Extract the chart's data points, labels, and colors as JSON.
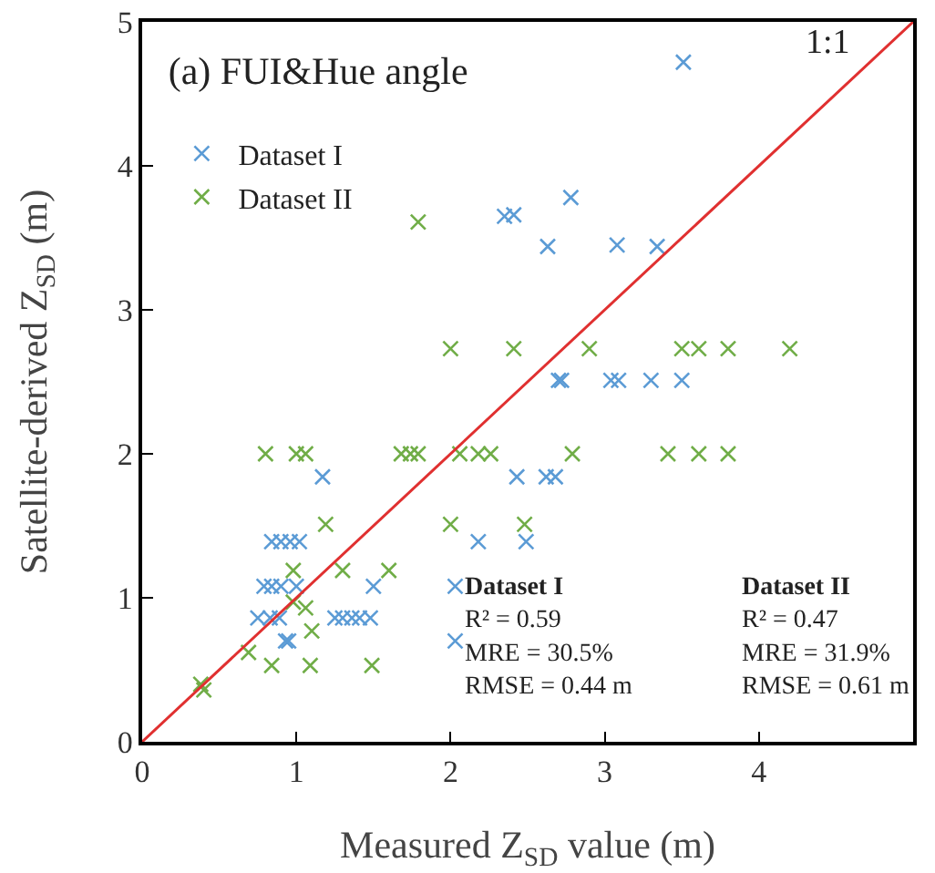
{
  "chart_data": {
    "type": "scatter",
    "title": "(a) FUI&Hue angle",
    "xlabel": "Measured Z$_{SD}$ value (m)",
    "ylabel": "Satellite-derived Z$_{SD}$ (m)",
    "xlim": [
      0,
      5
    ],
    "ylim": [
      0,
      5
    ],
    "xticks": [
      0,
      1,
      2,
      3,
      4,
      {
        "value": 5,
        "label": null
      }
    ],
    "yticks": [
      0,
      1,
      2,
      3,
      4,
      5
    ],
    "grid": false,
    "legend": "top left",
    "marker": "cross",
    "series": [
      {
        "name": "Dataset I",
        "color": "#5b9bd5",
        "x": [
          3.51,
          2.35,
          2.41,
          2.78,
          2.63,
          3.08,
          3.34,
          2.7,
          2.72,
          3.04,
          3.09,
          3.3,
          3.5,
          1.17,
          0.84,
          0.9,
          0.96,
          1.02,
          2.18,
          2.49,
          2.43,
          2.62,
          2.68,
          0.79,
          0.84,
          0.9,
          1.0,
          1.5,
          2.03,
          0.75,
          0.83,
          0.89,
          1.25,
          1.3,
          1.36,
          1.41,
          1.48,
          0.93,
          0.95,
          2.03
        ],
        "values": [
          4.72,
          3.65,
          3.66,
          3.78,
          3.44,
          3.45,
          3.44,
          2.51,
          2.51,
          2.51,
          2.51,
          2.51,
          2.51,
          1.84,
          1.39,
          1.39,
          1.39,
          1.39,
          1.39,
          1.39,
          1.84,
          1.84,
          1.84,
          1.08,
          1.08,
          1.08,
          1.08,
          1.08,
          1.08,
          0.86,
          0.86,
          0.86,
          0.86,
          0.86,
          0.86,
          0.86,
          0.86,
          0.7,
          0.7,
          0.7
        ]
      },
      {
        "name": "Dataset II",
        "color": "#70ad47",
        "x": [
          1.79,
          2.0,
          2.41,
          2.9,
          3.5,
          3.61,
          3.8,
          4.2,
          0.8,
          1.0,
          1.06,
          1.68,
          1.74,
          1.79,
          2.06,
          2.18,
          2.26,
          2.79,
          3.41,
          3.61,
          3.8,
          1.19,
          2.0,
          2.48,
          0.98,
          1.3,
          1.6,
          0.98,
          1.06,
          1.1,
          0.69,
          0.84,
          1.09,
          1.49,
          0.38,
          0.4
        ],
        "values": [
          3.61,
          2.73,
          2.73,
          2.73,
          2.73,
          2.73,
          2.73,
          2.73,
          2.0,
          2.0,
          2.0,
          2.0,
          2.0,
          2.0,
          2.0,
          2.0,
          2.0,
          2.0,
          2.0,
          2.0,
          2.0,
          1.51,
          1.51,
          1.51,
          1.19,
          1.19,
          1.19,
          0.97,
          0.93,
          0.77,
          0.62,
          0.53,
          0.53,
          0.53,
          0.4,
          0.36
        ]
      },
      {
        "name": "1:1",
        "type": "line",
        "color": "#e03030",
        "marker": "none",
        "x": [
          0,
          5
        ],
        "values": [
          0,
          5
        ]
      }
    ],
    "annotations": [
      "Dataset I\nR² = 0.59\nMRE = 30.5%\nRMSE = 0.44 m",
      "Dataset II\nR² = 0.47\nMRE = 31.9%\nRMSE = 0.61 m"
    ]
  }
}
